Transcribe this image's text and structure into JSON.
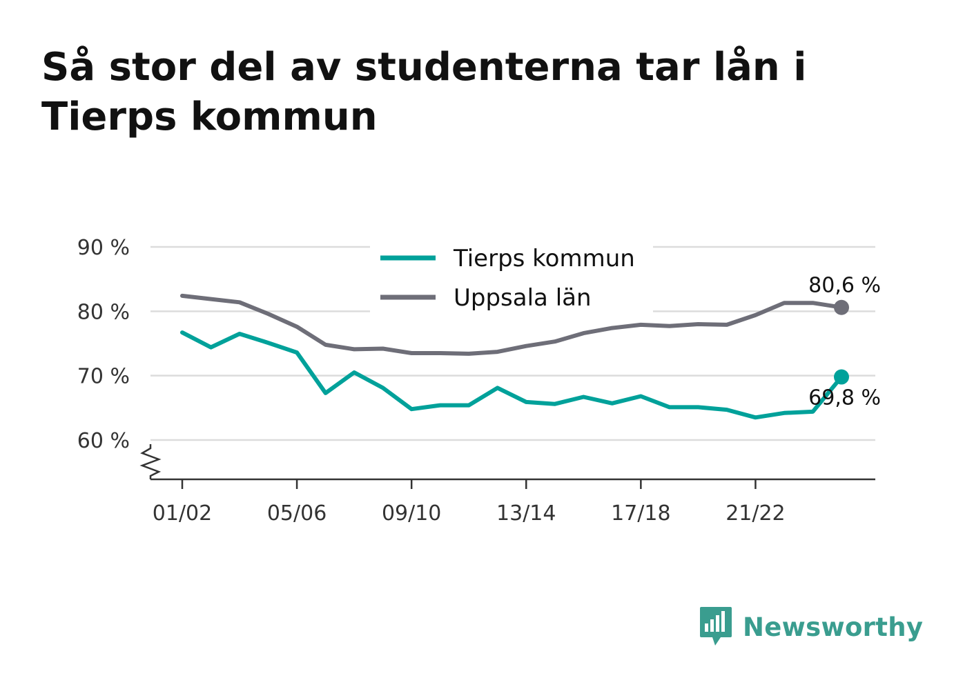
{
  "title": "Så stor del av studenterna tar lån i Tierps kommun",
  "brand": {
    "name": "Newsworthy",
    "color": "#3a9d8f",
    "icon": "bar-chart-speech-bubble-icon"
  },
  "chart_data": {
    "type": "line",
    "title": "Så stor del av studenterna tar lån i Tierps kommun",
    "xlabel": "",
    "ylabel": "",
    "categories": [
      "01/02",
      "02/03",
      "03/04",
      "04/05",
      "05/06",
      "06/07",
      "07/08",
      "08/09",
      "09/10",
      "10/11",
      "11/12",
      "12/13",
      "13/14",
      "14/15",
      "15/16",
      "16/17",
      "17/18",
      "18/19",
      "19/20",
      "20/21",
      "21/22",
      "22/23",
      "23/24",
      "24/25"
    ],
    "tick_labels": [
      "01/02",
      "05/06",
      "09/10",
      "13/14",
      "17/18",
      "21/22"
    ],
    "y_ticks": [
      60,
      70,
      80,
      90
    ],
    "y_tick_labels": [
      "60 %",
      "70 %",
      "80 %",
      "90 %"
    ],
    "ylim": [
      54,
      90
    ],
    "axis_break": true,
    "grid": true,
    "legend_position": "top-center",
    "series": [
      {
        "name": "Tierps kommun",
        "color": "#00a19a",
        "values": [
          76.7,
          74.4,
          76.5,
          75.1,
          73.6,
          67.3,
          70.5,
          68.1,
          64.8,
          65.4,
          65.4,
          68.1,
          65.9,
          65.6,
          66.7,
          65.7,
          66.8,
          65.1,
          65.1,
          64.7,
          63.5,
          64.2,
          64.4,
          69.8
        ],
        "end_label": "69,8 %"
      },
      {
        "name": "Uppsala län",
        "color": "#6e6e78",
        "values": [
          82.4,
          81.9,
          81.4,
          79.6,
          77.6,
          74.8,
          74.1,
          74.2,
          73.5,
          73.5,
          73.4,
          73.7,
          74.6,
          75.3,
          76.6,
          77.4,
          77.9,
          77.7,
          78.0,
          77.9,
          79.4,
          81.3,
          81.3,
          80.6
        ],
        "end_label": "80,6 %"
      }
    ]
  }
}
